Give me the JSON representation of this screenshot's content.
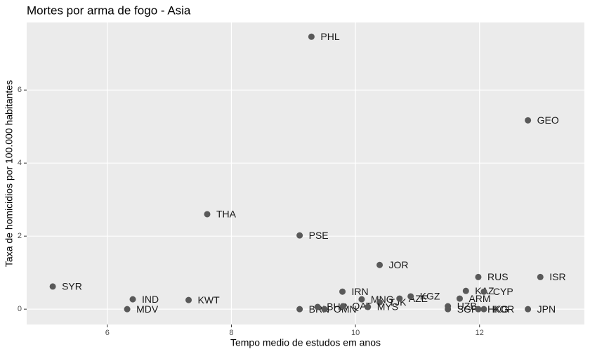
{
  "chart_data": {
    "type": "scatter",
    "title": "Mortes por arma de fogo - Asia",
    "x_label": "Tempo medio de estudos em anos",
    "y_label": "Taxa de homicidios por 100.000 habitantes",
    "labels": [
      "PHL",
      "GEO",
      "THA",
      "PSE",
      "JOR",
      "RUS",
      "ISR",
      "SYR",
      "IRN",
      "KAZ",
      "CYP",
      "IND",
      "KWT",
      "MNG",
      "TJK",
      "AZE",
      "KGZ",
      "ARM",
      "UZB",
      "SGP",
      "HKG",
      "KOR",
      "JPN",
      "MDV",
      "BRN",
      "OMN",
      "BHR",
      "QAT",
      "MYS"
    ],
    "x": [
      9.29,
      12.78,
      7.61,
      9.1,
      10.39,
      11.98,
      12.98,
      5.12,
      9.79,
      11.78,
      12.07,
      6.41,
      7.31,
      10.1,
      10.39,
      10.71,
      10.89,
      11.68,
      11.49,
      11.49,
      11.98,
      12.07,
      12.78,
      6.32,
      9.1,
      9.5,
      9.39,
      9.8,
      10.2
    ],
    "values": [
      7.46,
      5.17,
      2.6,
      2.02,
      1.21,
      0.88,
      0.88,
      0.62,
      0.48,
      0.5,
      0.48,
      0.27,
      0.25,
      0.27,
      0.19,
      0.29,
      0.35,
      0.29,
      0.08,
      0.0,
      0.0,
      0.0,
      0.0,
      0.0,
      0.0,
      0.0,
      0.06,
      0.08,
      0.06
    ],
    "color": "#595959",
    "xlim": [
      4.7,
      13.69
    ],
    "ylim": [
      -0.42,
      7.85
    ],
    "xticks": [
      6,
      8,
      10,
      12
    ],
    "yticks": [
      0,
      2,
      4,
      6
    ],
    "grid": true
  }
}
